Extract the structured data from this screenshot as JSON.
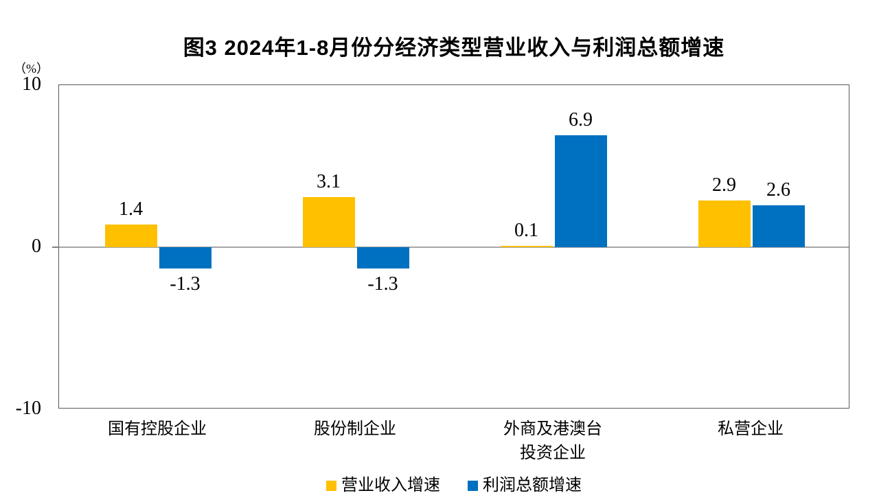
{
  "chart": {
    "title": "图3 2024年1-8月份分经济类型营业收入与利润总额增速",
    "unit_label": "（%）"
  },
  "chart_data": {
    "type": "bar",
    "title": "图3 2024年1-8月份分经济类型营业收入与利润总额增速",
    "categories": [
      "国有控股企业",
      "股份制企业",
      "外商及港澳台\n投资企业",
      "私营企业"
    ],
    "series": [
      {
        "name": "营业收入增速",
        "color": "#FFC000",
        "values": [
          1.4,
          3.1,
          0.1,
          2.9
        ]
      },
      {
        "name": "利润总额增速",
        "color": "#0070C0",
        "values": [
          -1.3,
          -1.3,
          6.9,
          2.6
        ]
      }
    ],
    "xlabel": "",
    "ylabel": "（%）",
    "ylim": [
      -10,
      10
    ],
    "yticks": [
      10,
      0,
      -10
    ],
    "grid": false,
    "legend_position": "bottom",
    "zero_line_color": "#a6a6a6",
    "value_labels_shown": true
  }
}
